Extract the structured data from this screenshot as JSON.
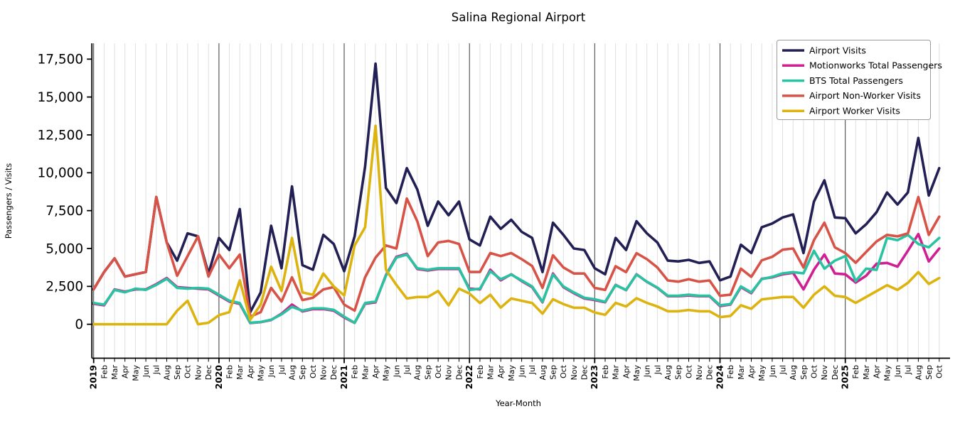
{
  "title": "Salina Regional Airport",
  "xlabel": "Year-Month",
  "ylabel": "Passengers / Visits",
  "chart_data": {
    "type": "line",
    "title": "Salina Regional Airport",
    "xlabel": "Year-Month",
    "ylabel": "Passengers / Visits",
    "ylim": [
      0,
      17500
    ],
    "ytick_step": 2500,
    "ytick_labels": [
      "0",
      "2,500",
      "5,000",
      "7,500",
      "10,000",
      "12,500",
      "15,000",
      "17,500"
    ],
    "grid": "vertical-monthly-light-with-dark-year-lines",
    "legend_position": "upper right",
    "x_labels": [
      "2019",
      "Feb",
      "Mar",
      "Apr",
      "May",
      "Jun",
      "Jul",
      "Aug",
      "Sep",
      "Oct",
      "Nov",
      "Dec",
      "2020",
      "Feb",
      "Mar",
      "Apr",
      "May",
      "Jun",
      "Jul",
      "Aug",
      "Sep",
      "Oct",
      "Nov",
      "Dec",
      "2021",
      "Feb",
      "Mar",
      "Apr",
      "May",
      "Jun",
      "Jul",
      "Aug",
      "Sep",
      "Oct",
      "Nov",
      "Dec",
      "2022",
      "Feb",
      "Mar",
      "Apr",
      "May",
      "Jun",
      "Jul",
      "Aug",
      "Sep",
      "Oct",
      "Nov",
      "Dec",
      "2023",
      "Feb",
      "Mar",
      "Apr",
      "May",
      "Jun",
      "Jul",
      "Aug",
      "Sep",
      "Oct",
      "Nov",
      "Dec",
      "2024",
      "Feb",
      "Mar",
      "Apr",
      "May",
      "Jun",
      "Jul",
      "Aug",
      "Sep",
      "Oct",
      "Nov",
      "Dec",
      "2025",
      "Feb",
      "Mar",
      "Apr",
      "May",
      "Jun",
      "Jul",
      "Aug",
      "Sep",
      "Oct"
    ],
    "year_start_indices": [
      0,
      12,
      24,
      36,
      48,
      60,
      72
    ],
    "series": [
      {
        "name": "Airport Visits",
        "color": "#221f54",
        "values": [
          2300,
          3450,
          4350,
          3150,
          3300,
          3450,
          8400,
          5400,
          4200,
          6000,
          5800,
          3350,
          5700,
          4900,
          7600,
          800,
          2100,
          6500,
          3700,
          9100,
          3900,
          3600,
          5900,
          5300,
          3500,
          5800,
          10400,
          17200,
          9000,
          8000,
          10300,
          8900,
          6500,
          8100,
          7200,
          8100,
          5600,
          5200,
          7100,
          6300,
          6900,
          6100,
          5700,
          3450,
          6700,
          5900,
          5000,
          4900,
          3700,
          3300,
          5700,
          4900,
          6800,
          6000,
          5400,
          4200,
          4150,
          4250,
          4050,
          4150,
          2900,
          3150,
          5250,
          4700,
          6400,
          6650,
          7050,
          7250,
          4700,
          8100,
          9500,
          7050,
          7000,
          6000,
          6600,
          7400,
          8700,
          7900,
          8700,
          12300,
          8500,
          10300
        ]
      },
      {
        "name": "Motionworks Total Passengers",
        "color": "#cf2093",
        "values": [
          1350,
          1250,
          2300,
          2150,
          2300,
          2300,
          2650,
          3050,
          2450,
          2400,
          2350,
          2300,
          1900,
          1500,
          1350,
          80,
          140,
          280,
          700,
          1300,
          850,
          1000,
          1000,
          900,
          450,
          90,
          1350,
          1450,
          3250,
          4450,
          4650,
          3650,
          3550,
          3650,
          3650,
          3650,
          2350,
          2300,
          3600,
          2900,
          3300,
          2850,
          2450,
          1450,
          3350,
          2450,
          2050,
          1700,
          1600,
          1450,
          2600,
          2250,
          3300,
          2800,
          2400,
          1850,
          1850,
          1900,
          1850,
          1850,
          1200,
          1300,
          2450,
          2050,
          3000,
          3100,
          3300,
          3400,
          2300,
          3600,
          4600,
          3350,
          3300,
          2750,
          3200,
          4000,
          4050,
          3800,
          4850,
          5950,
          4150,
          5000
        ]
      },
      {
        "name": "BTS Total Passengers",
        "color": "#2ac3a2",
        "values": [
          1400,
          1300,
          2270,
          2110,
          2350,
          2270,
          2600,
          3000,
          2400,
          2350,
          2400,
          2350,
          1950,
          1550,
          1400,
          100,
          150,
          300,
          650,
          1150,
          900,
          1050,
          1050,
          950,
          500,
          100,
          1400,
          1500,
          3200,
          4400,
          4600,
          3700,
          3600,
          3700,
          3700,
          3700,
          2270,
          2350,
          3500,
          2970,
          3280,
          2890,
          2500,
          1480,
          3280,
          2500,
          2100,
          1750,
          1650,
          1480,
          2580,
          2270,
          3280,
          2810,
          2420,
          1880,
          1880,
          1950,
          1880,
          1880,
          1250,
          1330,
          2500,
          2100,
          2970,
          3130,
          3360,
          3440,
          3360,
          4850,
          3670,
          4200,
          4500,
          2850,
          3670,
          3590,
          5700,
          5550,
          5900,
          5300,
          5080,
          5700
        ]
      },
      {
        "name": "Airport Non-Worker Visits",
        "color": "#d85347",
        "values": [
          2300,
          3450,
          4350,
          3150,
          3300,
          3450,
          8400,
          5400,
          3200,
          4500,
          5800,
          3150,
          4600,
          3700,
          4600,
          500,
          800,
          2400,
          1500,
          3100,
          1600,
          1750,
          2300,
          2450,
          1300,
          900,
          3100,
          4400,
          5200,
          5000,
          8300,
          6800,
          4500,
          5400,
          5500,
          5300,
          3450,
          3450,
          4700,
          4500,
          4700,
          4300,
          3850,
          2400,
          4550,
          3750,
          3350,
          3350,
          2400,
          2270,
          3830,
          3440,
          4690,
          4300,
          3750,
          2890,
          2810,
          2970,
          2810,
          2890,
          1880,
          1950,
          3670,
          3130,
          4220,
          4450,
          4920,
          5000,
          3750,
          5550,
          6700,
          5080,
          4700,
          4060,
          4770,
          5470,
          5900,
          5800,
          6000,
          8400,
          5900,
          7100
        ]
      },
      {
        "name": "Airport Worker Visits",
        "color": "#ddb310",
        "values": [
          0,
          0,
          0,
          0,
          0,
          0,
          0,
          0,
          900,
          1550,
          0,
          100,
          600,
          800,
          2900,
          300,
          1300,
          3800,
          2200,
          5700,
          2100,
          1950,
          3350,
          2500,
          1900,
          5200,
          6400,
          13100,
          3600,
          2600,
          1700,
          1800,
          1800,
          2200,
          1250,
          2350,
          2030,
          1400,
          1950,
          1100,
          1700,
          1550,
          1400,
          700,
          1650,
          1330,
          1090,
          1090,
          780,
          625,
          1410,
          1170,
          1720,
          1410,
          1170,
          860,
          860,
          940,
          860,
          860,
          470,
          550,
          1250,
          1020,
          1640,
          1720,
          1800,
          1800,
          1090,
          1950,
          2500,
          1880,
          1800,
          1410,
          1800,
          2190,
          2580,
          2270,
          2730,
          3440,
          2660,
          3050
        ]
      }
    ]
  }
}
